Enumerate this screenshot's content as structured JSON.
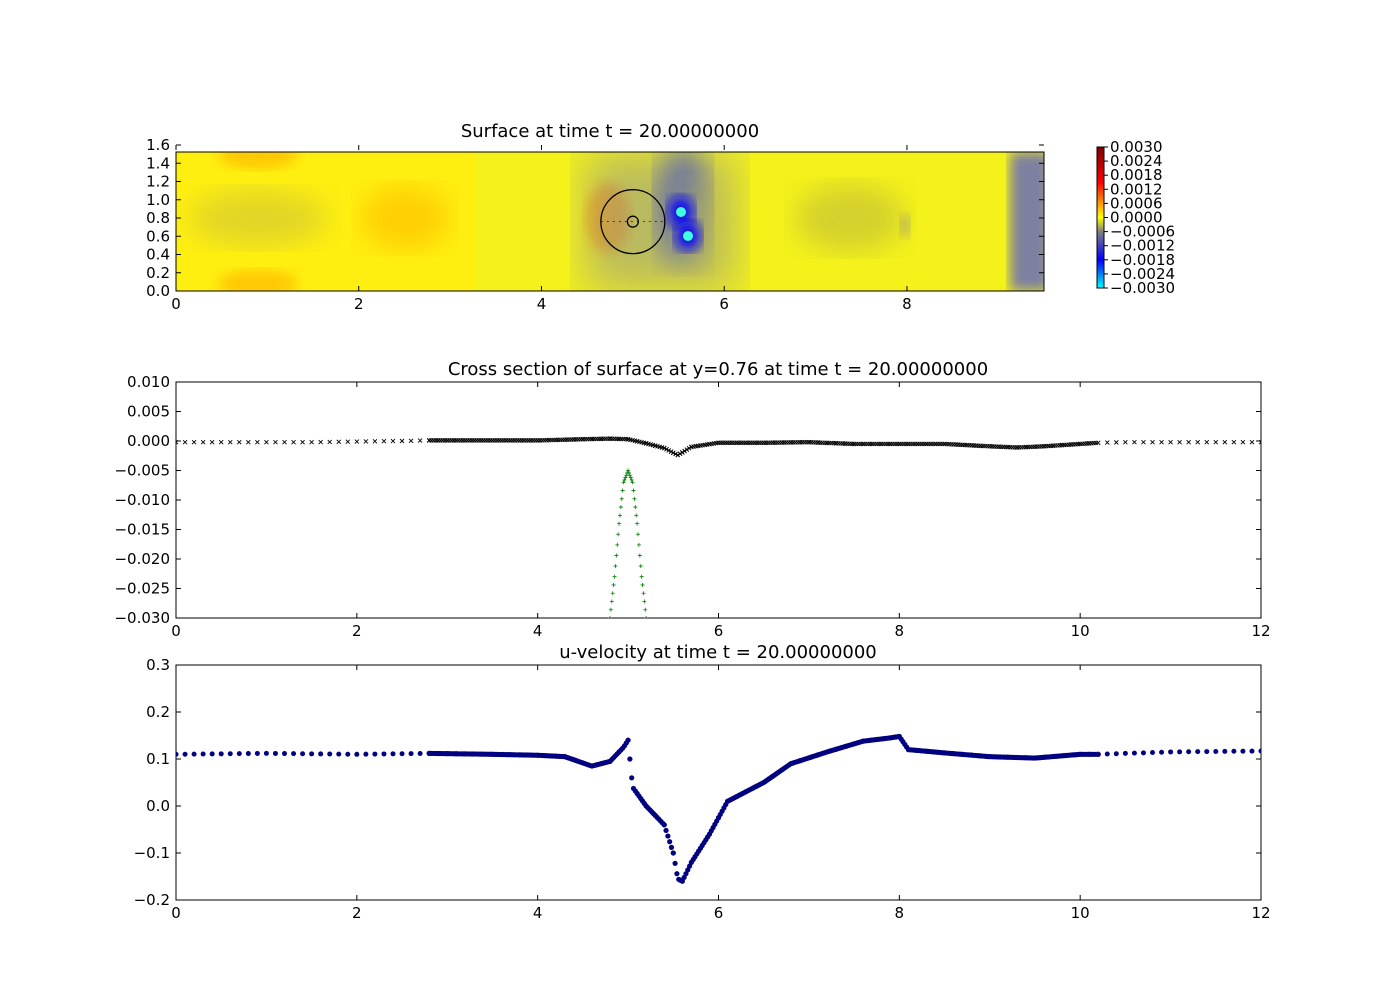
{
  "chart_data": [
    {
      "type": "heatmap",
      "title": "Surface at time t =    20.00000000",
      "xlim": [
        0,
        9.5
      ],
      "ylim": [
        0,
        1.6
      ],
      "x_ticks": [
        "0",
        "2",
        "4",
        "6",
        "8"
      ],
      "y_ticks": [
        "0.0",
        "0.2",
        "0.4",
        "0.6",
        "0.8",
        "1.0",
        "1.2",
        "1.4",
        "1.6"
      ],
      "colorbar": {
        "min": -0.003,
        "max": 0.003,
        "ticks": [
          "0.0030",
          "0.0024",
          "0.0018",
          "0.0012",
          "0.0006",
          "0.0000",
          "−0.0006",
          "−0.0012",
          "−0.0018",
          "−0.0024",
          "−0.0030"
        ],
        "colors": [
          "#00ffff",
          "#0000ff",
          "#808080",
          "#ffff00",
          "#ff0000",
          "#800000"
        ]
      },
      "cylinder": {
        "center": [
          5.0,
          0.76
        ],
        "outer_radius": 0.35,
        "inner_radius": 0.06
      },
      "features": [
        {
          "x": 5.55,
          "y": 0.85,
          "value": -0.003
        },
        {
          "x": 5.62,
          "y": 0.6,
          "value": -0.0028
        },
        {
          "x": 0.9,
          "y": 1.45,
          "value": 0.0006
        },
        {
          "x": 0.9,
          "y": 0.08,
          "value": 0.0006
        },
        {
          "x": 2.5,
          "y": 0.76,
          "value": 0.0006
        },
        {
          "x": 4.75,
          "y": 0.76,
          "value": 0.0008
        },
        {
          "x": 7.5,
          "y": 0.76,
          "value": -0.0005
        },
        {
          "x": 9.3,
          "y": 0.76,
          "value": -0.0012
        }
      ]
    },
    {
      "type": "scatter",
      "title": "Cross section of surface at y=0.76 at time t =    20.00000000",
      "xlim": [
        0,
        12
      ],
      "ylim": [
        -0.03,
        0.01
      ],
      "x_ticks": [
        "0",
        "2",
        "4",
        "6",
        "8",
        "10",
        "12"
      ],
      "y_ticks": [
        "0.010",
        "0.005",
        "0.000",
        "−0.005",
        "−0.010",
        "−0.015",
        "−0.020",
        "−0.025",
        "−0.030"
      ],
      "series": [
        {
          "marker": "x",
          "color": "#000000",
          "x": [
            0.0,
            0.5,
            1.0,
            1.5,
            2.0,
            2.5,
            2.8,
            3.5,
            4.0,
            4.5,
            4.8,
            5.0,
            5.2,
            5.4,
            5.55,
            5.7,
            6.0,
            6.5,
            7.0,
            7.5,
            8.0,
            8.5,
            9.0,
            9.3,
            9.6,
            10.0,
            10.2,
            10.5,
            11.0,
            11.5,
            12.0
          ],
          "y": [
            -0.0002,
            -0.0002,
            -0.0002,
            -0.0002,
            -0.0001,
            0.0,
            0.0001,
            0.0001,
            0.0001,
            0.0003,
            0.0004,
            0.0003,
            -0.0004,
            -0.0012,
            -0.0024,
            -0.001,
            -0.0003,
            -0.0003,
            -0.0002,
            -0.0005,
            -0.0005,
            -0.0005,
            -0.0009,
            -0.0011,
            -0.0009,
            -0.0005,
            -0.0003,
            -0.0002,
            -0.0002,
            -0.0002,
            -0.0002
          ]
        },
        {
          "marker": "+",
          "color": "#008000",
          "x": [
            4.8,
            4.85,
            4.9,
            4.95,
            5.0,
            5.05,
            5.1,
            5.15,
            5.2
          ],
          "y": [
            -0.03,
            -0.023,
            -0.014,
            -0.007,
            -0.005,
            -0.007,
            -0.014,
            -0.023,
            -0.03
          ]
        }
      ]
    },
    {
      "type": "scatter",
      "title": "u-velocity at time t =    20.00000000",
      "xlim": [
        0,
        12
      ],
      "ylim": [
        -0.2,
        0.3
      ],
      "x_ticks": [
        "0",
        "2",
        "4",
        "6",
        "8",
        "10",
        "12"
      ],
      "y_ticks": [
        "0.3",
        "0.2",
        "0.1",
        "0.0",
        "−0.1",
        "−0.2"
      ],
      "series": [
        {
          "marker": "o",
          "color": "#000080",
          "x": [
            0.0,
            1.0,
            2.0,
            2.8,
            3.5,
            4.0,
            4.3,
            4.6,
            4.8,
            4.95,
            5.0,
            5.05,
            5.2,
            5.4,
            5.5,
            5.55,
            5.6,
            5.7,
            5.9,
            6.1,
            6.5,
            6.8,
            7.2,
            7.6,
            7.9,
            8.0,
            8.1,
            8.5,
            9.0,
            9.5,
            10.0,
            10.2,
            11.0,
            12.0
          ],
          "y": [
            0.11,
            0.112,
            0.11,
            0.112,
            0.11,
            0.108,
            0.105,
            0.085,
            0.095,
            0.125,
            0.14,
            0.04,
            0.0,
            -0.04,
            -0.1,
            -0.155,
            -0.16,
            -0.12,
            -0.06,
            0.01,
            0.05,
            0.09,
            0.115,
            0.138,
            0.145,
            0.148,
            0.12,
            0.113,
            0.105,
            0.102,
            0.11,
            0.11,
            0.115,
            0.117
          ]
        }
      ]
    }
  ]
}
